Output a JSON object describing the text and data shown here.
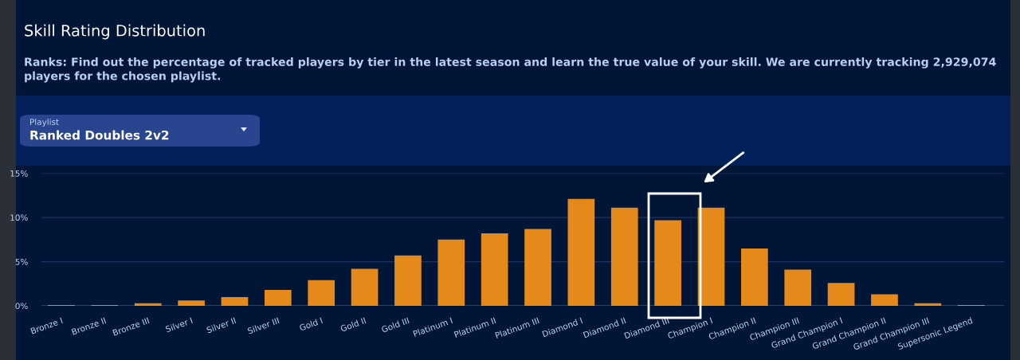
{
  "chart_data": {
    "type": "bar",
    "title": "Skill Rating Distribution",
    "subtitle": "Ranks: Find out the percentage of tracked players by tier in the latest season and learn the true value of your skill. We are currently tracking 2,929,074 players for the chosen playlist.",
    "annotations": [
      "Playlist",
      "Ranked Doubles 2v2"
    ],
    "categories": [
      "Bronze I",
      "Bronze II",
      "Bronze III",
      "Silver I",
      "Silver II",
      "Silver III",
      "Gold I",
      "Gold II",
      "Gold III",
      "Platinum I",
      "Platinum II",
      "Platinum III",
      "Diamond I",
      "Diamond II",
      "Diamond III",
      "Champion I",
      "Champion II",
      "Champion III",
      "Grand Champion I",
      "Grand Champion II",
      "Grand Champion III",
      "Supersonic Legend"
    ],
    "values": [
      0.1,
      0.1,
      0.3,
      0.6,
      1.0,
      1.8,
      2.9,
      4.2,
      5.7,
      7.5,
      8.2,
      8.7,
      12.1,
      11.1,
      9.7,
      11.1,
      6.5,
      4.1,
      2.6,
      1.3,
      0.3,
      0.1
    ],
    "color": "#e5891a",
    "ylim": [
      0,
      15
    ],
    "yticks": [
      {
        "value": 0,
        "label": "0%"
      },
      {
        "value": 5,
        "label": "5%"
      },
      {
        "value": 10,
        "label": "10%"
      },
      {
        "value": 15,
        "label": "15%"
      }
    ],
    "grid": "y"
  }
}
